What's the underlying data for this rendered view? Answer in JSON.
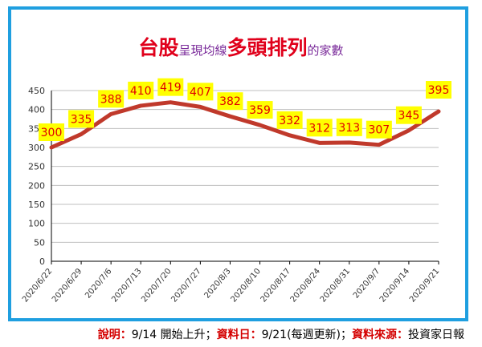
{
  "title": {
    "part1": "台股",
    "part2": "呈現均線",
    "part3": "多頭排列",
    "part4": "的家數"
  },
  "colors": {
    "title_big": "#e0001b",
    "title_small": "#7a2a9a",
    "frame": "#1f9fe0",
    "line": "#c0392b",
    "label_bg": "#ffff00",
    "label_text": "#e00000"
  },
  "chart_data": {
    "type": "line",
    "categories": [
      "2020/6/22",
      "2020/6/29",
      "2020/7/6",
      "2020/7/13",
      "2020/7/20",
      "2020/7/27",
      "2020/8/3",
      "2020/8/10",
      "2020/8/17",
      "2020/8/24",
      "2020/8/31",
      "2020/9/7",
      "2020/9/14",
      "2020/9/21"
    ],
    "series": [
      {
        "values": [
          300,
          335,
          388,
          410,
          419,
          407,
          382,
          359,
          332,
          312,
          313,
          307,
          345,
          395
        ]
      }
    ],
    "ylim": [
      0,
      450
    ],
    "yticks": [
      0,
      50,
      100,
      150,
      200,
      250,
      300,
      350,
      400,
      450
    ],
    "grid": true,
    "data_labels": true
  },
  "footer": {
    "note_label": "說明：",
    "note_text": "9/14 開始上升；",
    "date_label": "資料日：",
    "date_text": "9/21(每週更新)；",
    "source_label": "資料來源：",
    "source_text": "投資家日報"
  }
}
